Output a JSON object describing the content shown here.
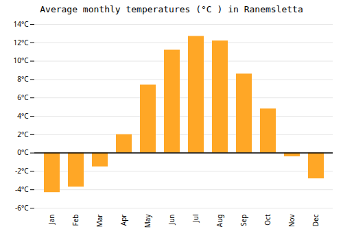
{
  "chart_data": {
    "type": "bar",
    "title": "Average monthly temperatures (°C ) in Ranemsletta",
    "categories": [
      "Jan",
      "Feb",
      "Mar",
      "Apr",
      "May",
      "Jun",
      "Jul",
      "Aug",
      "Sep",
      "Oct",
      "Nov",
      "Dec"
    ],
    "values": [
      -4.3,
      -3.7,
      -1.5,
      2.0,
      7.4,
      11.2,
      12.7,
      12.2,
      8.6,
      4.8,
      -0.4,
      -2.8
    ],
    "color": "#FFA726",
    "ylim": [
      -6,
      14
    ],
    "yticks": [
      {
        "value": -6,
        "label": "-6°C"
      },
      {
        "value": -4,
        "label": "-4°C"
      },
      {
        "value": -2,
        "label": "-2°C"
      },
      {
        "value": 0,
        "label": "0°C"
      },
      {
        "value": 2,
        "label": "2°C"
      },
      {
        "value": 4,
        "label": "4°C"
      },
      {
        "value": 6,
        "label": "6°C"
      },
      {
        "value": 8,
        "label": "8°C"
      },
      {
        "value": 10,
        "label": "10°C"
      },
      {
        "value": 12,
        "label": "12°C"
      },
      {
        "value": 14,
        "label": "14°C"
      }
    ],
    "grid": true
  }
}
